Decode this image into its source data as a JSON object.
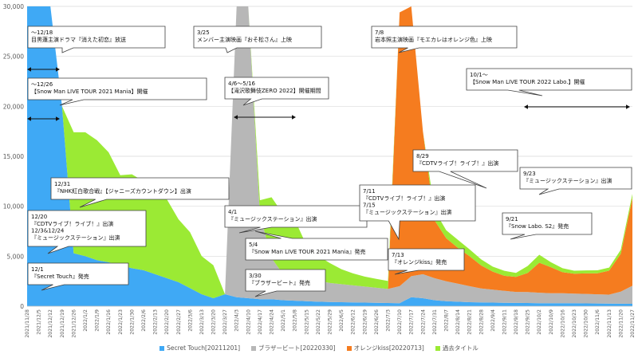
{
  "chart_data": {
    "type": "area",
    "stacked": true,
    "y_ticks": [
      "0",
      "5,000",
      "10,000",
      "15,000",
      "20,000",
      "25,000",
      "30,000"
    ],
    "y_tick_values": [
      0,
      5000,
      10000,
      15000,
      20000,
      25000,
      30000
    ],
    "ylim": [
      0,
      30000
    ],
    "grid": true,
    "legend_position": "bottom",
    "x_tick_labels": [
      "2021/11/28",
      "2021/12/5",
      "2021/12/12",
      "2021/12/19",
      "2021/12/26",
      "2022/1/2",
      "2022/1/9",
      "2022/1/16",
      "2022/1/23",
      "2022/1/30",
      "2022/2/6",
      "2022/2/13",
      "2022/2/20",
      "2022/2/27",
      "2022/3/6",
      "2022/3/13",
      "2022/3/20",
      "2022/3/27",
      "2022/4/3",
      "2022/4/10",
      "2022/4/17",
      "2022/4/24",
      "2022/5/1",
      "2022/5/8",
      "2022/5/15",
      "2022/5/22",
      "2022/5/29",
      "2022/6/5",
      "2022/6/12",
      "2022/6/19",
      "2022/6/26",
      "2022/7/3",
      "2022/7/10",
      "2022/7/17",
      "2022/7/24",
      "2022/7/31",
      "2022/8/7",
      "2022/8/14",
      "2022/8/21",
      "2022/8/28",
      "2022/9/4",
      "2022/9/11",
      "2022/9/18",
      "2022/9/25",
      "2022/10/2",
      "2022/10/9",
      "2022/10/16",
      "2022/10/23",
      "2022/10/30",
      "2022/11/6",
      "2022/11/13",
      "2022/11/20",
      "2022/11/27"
    ],
    "series": [
      {
        "name": "Secret Touch[20211201]",
        "color": "#3fa9f5",
        "values": [
          30000,
          30000,
          30000,
          20000,
          5300,
          5000,
          4600,
          4400,
          4100,
          3800,
          3600,
          3200,
          2800,
          2400,
          1800,
          1200,
          800,
          1200,
          900,
          800,
          700,
          700,
          600,
          550,
          500,
          450,
          420,
          400,
          380,
          360,
          340,
          320,
          300,
          900,
          800,
          600,
          500,
          450,
          400,
          380,
          360,
          340,
          330,
          320,
          300,
          300,
          300,
          300,
          280,
          270,
          260,
          250,
          240
        ]
      },
      {
        "name": "ブラザービート[20220330]",
        "color": "#b7b7b7",
        "values": [
          0,
          0,
          0,
          0,
          0,
          0,
          0,
          0,
          0,
          0,
          0,
          0,
          0,
          0,
          0,
          0,
          0,
          0,
          29100,
          29200,
          8500,
          4100,
          2600,
          2500,
          2400,
          2100,
          1900,
          1800,
          1700,
          1600,
          1500,
          1400,
          1700,
          2100,
          2400,
          2200,
          2000,
          1800,
          1600,
          1400,
          1300,
          1200,
          1100,
          1100,
          1050,
          1000,
          1000,
          950,
          950,
          920,
          900,
          1200,
          1800
        ]
      },
      {
        "name": "オレンジkiss[20220713]",
        "color": "#f57c1f",
        "values": [
          0,
          0,
          0,
          0,
          0,
          0,
          0,
          0,
          0,
          0,
          0,
          0,
          0,
          0,
          0,
          0,
          0,
          0,
          0,
          0,
          0,
          0,
          0,
          0,
          0,
          0,
          0,
          0,
          0,
          0,
          0,
          0,
          27400,
          27000,
          14300,
          5800,
          4300,
          3600,
          3000,
          2300,
          1800,
          1500,
          1500,
          1900,
          3000,
          2600,
          2100,
          2000,
          2050,
          2100,
          2400,
          3800,
          8800
        ]
      },
      {
        "name": "過去タイトル",
        "color": "#9bea34",
        "values": [
          0,
          0,
          0,
          0,
          12100,
          12400,
          12000,
          11000,
          9000,
          9400,
          8900,
          9400,
          7900,
          6300,
          5600,
          3800,
          3300,
          0,
          0,
          0,
          1400,
          6100,
          6000,
          5600,
          3200,
          2500,
          2000,
          1500,
          1200,
          1000,
          900,
          800,
          0,
          0,
          0,
          1000,
          800,
          800,
          700,
          600,
          500,
          500,
          400,
          700,
          800,
          500,
          400,
          300,
          300,
          300,
          300,
          400,
          400
        ]
      }
    ],
    "annotations": [
      {
        "text": "～12/18\n目黒蓮主演ドラマ『消えた初恋』放送"
      },
      {
        "text": "～12/26\n【Snow Man LIVE TOUR 2021 Mania】開催"
      },
      {
        "text": "12/31\n『NHK紅白歌合戦』【ジャニーズカウントダウン】出演"
      },
      {
        "text": "12/20\n『CDTVライブ！ライブ！』出演\n12/3&12/24\n『ミュージックステーション』出演"
      },
      {
        "text": "12/1\n『Secret Touch』発売"
      },
      {
        "text": "3/25\nメンバー主演映画『おそ松さん』上映"
      },
      {
        "text": "4/6～5/16\n【滝沢歌舞伎ZERO 2022】開催期間"
      },
      {
        "text": "4/1\n『ミュージックステーション』出演"
      },
      {
        "text": "5/4\n『Snow Man LIVE TOUR 2021 Mania』発売"
      },
      {
        "text": "3/30\n『ブラザービート』発売"
      },
      {
        "text": "7/8\n岩本照主演映画『モエカレはオレンジ色』上映"
      },
      {
        "text": "7/11\n『CDTVライブ！ライブ！』出演\n7/15\n『ミュージックステーション』出演"
      },
      {
        "text": "7/13\n『オレンジkiss』発売"
      },
      {
        "text": "8/29\n『CDTVライブ！ライブ！』出演"
      },
      {
        "text": "9/23\n『ミュージックステーション』出演"
      },
      {
        "text": "9/21\n『Snow Labo. S2』発売"
      },
      {
        "text": "10/1～\n【Snow Man LIVE TOUR 2022 Labo.】開催"
      }
    ]
  }
}
